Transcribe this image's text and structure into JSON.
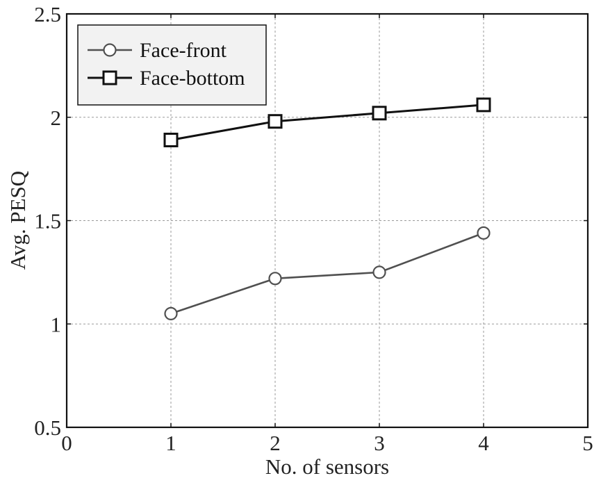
{
  "chart_data": {
    "type": "line",
    "title": "",
    "xlabel": "No. of sensors",
    "ylabel": "Avg. PESQ",
    "xlim": [
      0,
      5
    ],
    "ylim": [
      0.5,
      2.5
    ],
    "xticks": [
      0,
      1,
      2,
      3,
      4,
      5
    ],
    "yticks": [
      0.5,
      1,
      1.5,
      2,
      2.5
    ],
    "xtick_labels": [
      "0",
      "1",
      "2",
      "3",
      "4",
      "5"
    ],
    "ytick_labels": [
      "0.5",
      "1",
      "1.5",
      "2",
      "2.5"
    ],
    "grid": true,
    "legend_position": "top-left",
    "x": [
      1,
      2,
      3,
      4
    ],
    "series": [
      {
        "name": "Face-front",
        "marker": "circle",
        "color": "#505050",
        "values": [
          1.05,
          1.22,
          1.25,
          1.44
        ]
      },
      {
        "name": "Face-bottom",
        "marker": "square",
        "color": "#111111",
        "values": [
          1.89,
          1.98,
          2.02,
          2.06
        ]
      }
    ]
  }
}
